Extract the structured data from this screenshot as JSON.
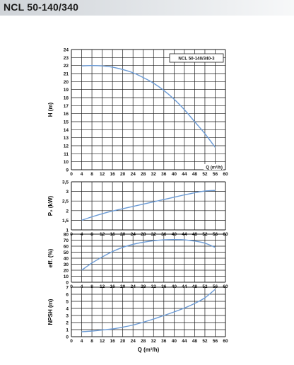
{
  "page": {
    "title": "NCL 50-140/340"
  },
  "styles": {
    "curve_color": "#6b9bd6",
    "grid_color": "#1a1a1a",
    "title_bg": "#dfe2e6"
  },
  "chart_data": [
    {
      "id": "head",
      "type": "line",
      "ylabel": "H (m)",
      "xlabel": "Q (m³/h)",
      "legend": "NCL 50-140/340-3",
      "xlim": [
        0,
        60
      ],
      "ylim": [
        9,
        24
      ],
      "xticks": [
        "0",
        "4",
        "8",
        "12",
        "16",
        "20",
        "24",
        "28",
        "32",
        "36",
        "40",
        "44",
        "48",
        "52",
        "56",
        "60"
      ],
      "yticks": [
        "9",
        "10",
        "11",
        "12",
        "13",
        "14",
        "15",
        "16",
        "17",
        "18",
        "19",
        "20",
        "21",
        "22",
        "23",
        "24"
      ],
      "grid": true,
      "series": [
        {
          "x": [
            4,
            8,
            12,
            16,
            20,
            24,
            28,
            32,
            36,
            40,
            44,
            48,
            52,
            56
          ],
          "y": [
            21.95,
            22.0,
            21.95,
            21.8,
            21.5,
            21.1,
            20.5,
            19.8,
            18.9,
            17.8,
            16.5,
            15.0,
            13.5,
            11.8
          ]
        }
      ]
    },
    {
      "id": "power",
      "type": "line",
      "ylabel": "P₂ (kW)",
      "xlim": [
        0,
        60
      ],
      "ylim": [
        1,
        3.5
      ],
      "xticks": [
        "0",
        "4",
        "8",
        "12",
        "16",
        "20",
        "24",
        "28",
        "32",
        "36",
        "40",
        "44",
        "48",
        "52",
        "56",
        "60"
      ],
      "yticks": [
        "1",
        "1,5",
        "2",
        "2,5",
        "3",
        "3,5"
      ],
      "grid": true,
      "series": [
        {
          "x": [
            4,
            8,
            12,
            16,
            20,
            24,
            28,
            32,
            36,
            40,
            44,
            48,
            52,
            56
          ],
          "y": [
            1.5,
            1.68,
            1.84,
            1.98,
            2.1,
            2.22,
            2.34,
            2.46,
            2.58,
            2.7,
            2.82,
            2.93,
            3.02,
            3.05
          ]
        }
      ]
    },
    {
      "id": "efficiency",
      "type": "line",
      "ylabel": "eff. (%)",
      "xlim": [
        0,
        60
      ],
      "ylim": [
        0,
        80
      ],
      "xticks": [
        "0",
        "4",
        "8",
        "12",
        "16",
        "20",
        "24",
        "28",
        "32",
        "36",
        "40",
        "44",
        "48",
        "52",
        "56",
        "60"
      ],
      "yticks": [
        "0",
        "10",
        "20",
        "30",
        "40",
        "50",
        "60",
        "70",
        "80"
      ],
      "grid": true,
      "series": [
        {
          "x": [
            4,
            8,
            12,
            16,
            20,
            24,
            28,
            32,
            36,
            40,
            44,
            48,
            52,
            56
          ],
          "y": [
            20,
            32,
            42,
            51,
            58,
            63,
            66.5,
            69,
            70.5,
            71,
            70.5,
            68.5,
            65,
            58
          ]
        }
      ]
    },
    {
      "id": "npsh",
      "type": "line",
      "ylabel": "NPSH (m)",
      "xlabel": "Q (m³/h)",
      "xlim": [
        0,
        60
      ],
      "ylim": [
        0,
        7
      ],
      "xticks": [
        "0",
        "4",
        "8",
        "12",
        "16",
        "20",
        "24",
        "28",
        "32",
        "36",
        "40",
        "44",
        "48",
        "52",
        "56",
        "60"
      ],
      "yticks": [
        "0",
        "1",
        "2",
        "3",
        "4",
        "5",
        "6",
        "7"
      ],
      "grid": true,
      "series": [
        {
          "x": [
            4,
            8,
            12,
            16,
            20,
            24,
            28,
            32,
            36,
            40,
            44,
            48,
            52,
            56
          ],
          "y": [
            0.7,
            0.8,
            0.95,
            1.1,
            1.35,
            1.65,
            2.05,
            2.5,
            3.0,
            3.5,
            4.05,
            4.7,
            5.5,
            6.7
          ]
        }
      ]
    }
  ]
}
